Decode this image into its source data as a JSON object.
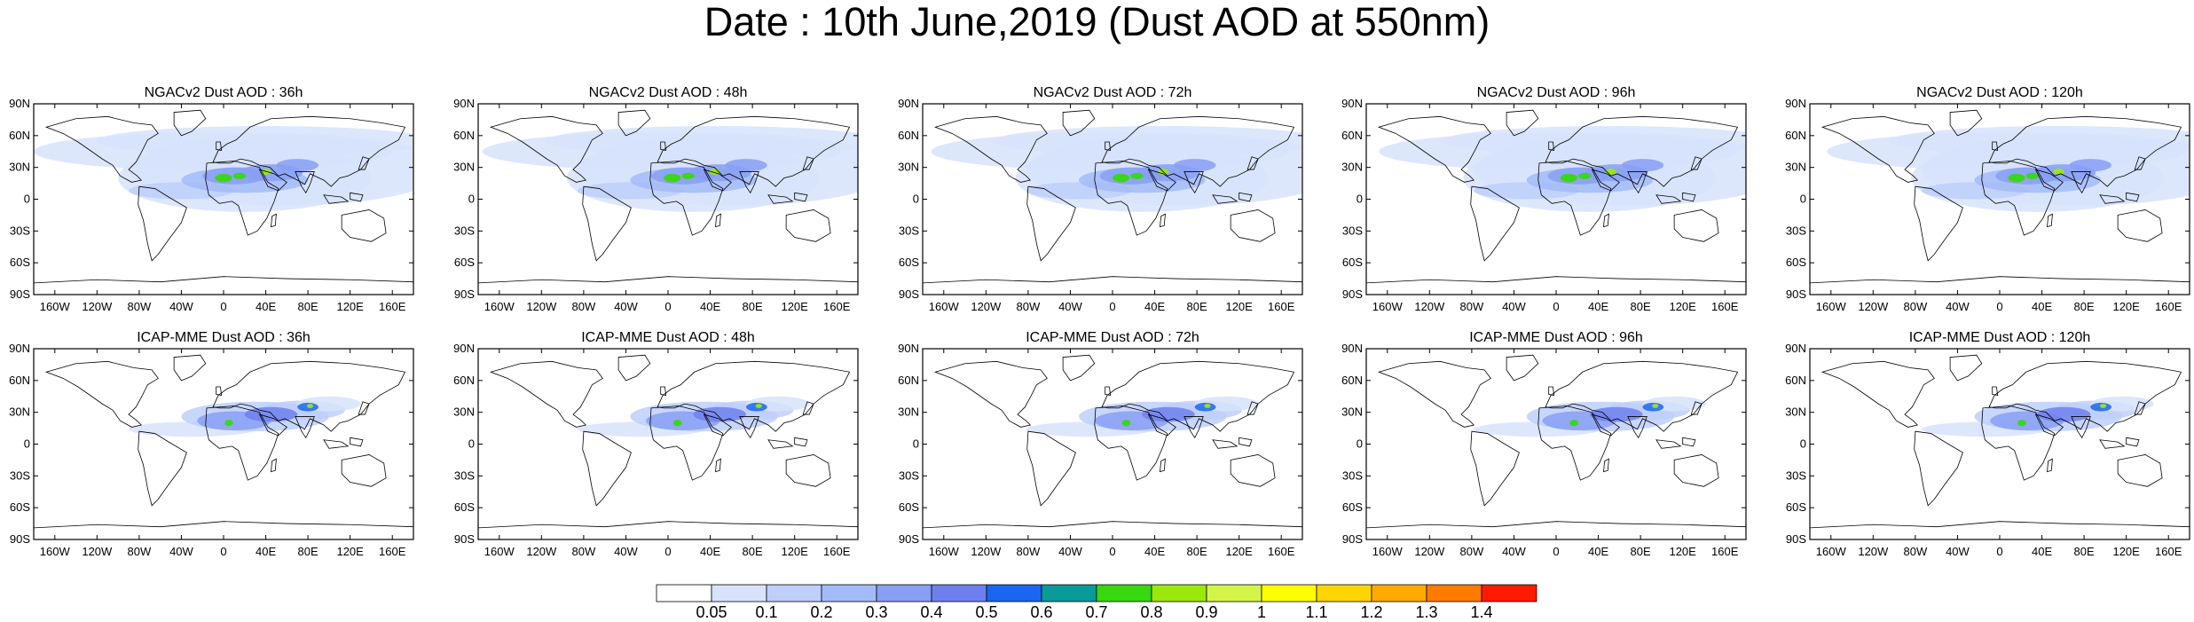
{
  "title": "Date : 10th June,2019 (Dust AOD at 550nm)",
  "panels": [
    {
      "title": "NGACv2 Dust AOD : 36h",
      "model": "NGACv2",
      "lead": "36h"
    },
    {
      "title": "NGACv2 Dust AOD : 48h",
      "model": "NGACv2",
      "lead": "48h"
    },
    {
      "title": "NGACv2 Dust AOD : 72h",
      "model": "NGACv2",
      "lead": "72h"
    },
    {
      "title": "NGACv2 Dust AOD : 96h",
      "model": "NGACv2",
      "lead": "96h"
    },
    {
      "title": "NGACv2 Dust AOD : 120h",
      "model": "NGACv2",
      "lead": "120h"
    },
    {
      "title": "ICAP-MME Dust AOD : 36h",
      "model": "ICAP-MME",
      "lead": "36h"
    },
    {
      "title": "ICAP-MME Dust AOD : 48h",
      "model": "ICAP-MME",
      "lead": "48h"
    },
    {
      "title": "ICAP-MME Dust AOD : 72h",
      "model": "ICAP-MME",
      "lead": "72h"
    },
    {
      "title": "ICAP-MME Dust AOD : 96h",
      "model": "ICAP-MME",
      "lead": "96h"
    },
    {
      "title": "ICAP-MME Dust AOD : 120h",
      "model": "ICAP-MME",
      "lead": "120h"
    }
  ],
  "axes": {
    "lat_ticks": [
      "90N",
      "60N",
      "30N",
      "0",
      "30S",
      "60S",
      "90S"
    ],
    "lon_ticks": [
      "160W",
      "120W",
      "80W",
      "40W",
      "0",
      "40E",
      "80E",
      "120E",
      "160E"
    ],
    "lat_range": [
      -90,
      90
    ],
    "lon_range": [
      -180,
      180
    ]
  },
  "colorbar": {
    "labels": [
      "0.05",
      "0.1",
      "0.2",
      "0.3",
      "0.4",
      "0.5",
      "0.6",
      "0.7",
      "0.8",
      "0.9",
      "1",
      "1.1",
      "1.2",
      "1.3",
      "1.4"
    ],
    "colors": [
      "#ffffff",
      "#d7e3fb",
      "#bdcffa",
      "#a3bbf8",
      "#889ff3",
      "#6f80ee",
      "#1a66f0",
      "#0a9a9a",
      "#37d80f",
      "#9be80d",
      "#d3f54a",
      "#ffff00",
      "#ffd400",
      "#ffaa00",
      "#ff7b00",
      "#ff1a00"
    ]
  }
}
